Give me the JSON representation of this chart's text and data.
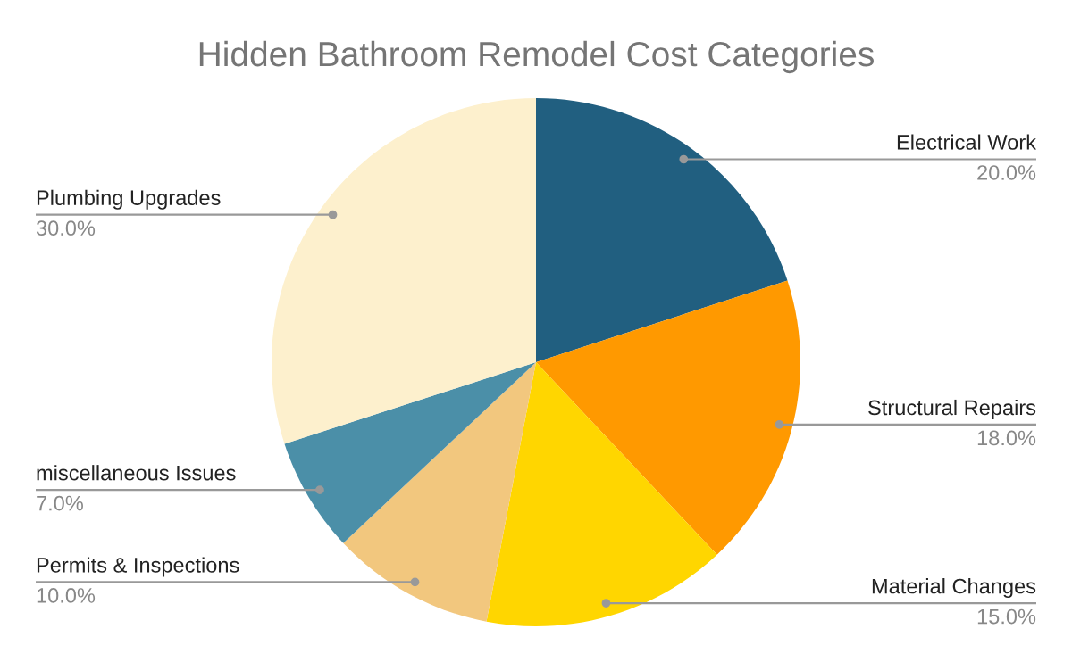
{
  "chart_data": {
    "type": "pie",
    "title": "Hidden Bathroom Remodel Cost Categories",
    "categories": [
      "Electrical Work",
      "Structural Repairs",
      "Material Changes",
      "Permits & Inspections",
      "miscellaneous Issues",
      "Plumbing Upgrades"
    ],
    "values": [
      20.0,
      18.0,
      15.0,
      10.0,
      7.0,
      30.0
    ],
    "colors": [
      "#215f80",
      "#ff9900",
      "#ffd600",
      "#f2c77e",
      "#4b8fa8",
      "#fdf0cd"
    ],
    "value_labels": [
      "20.0%",
      "18.0%",
      "15.0%",
      "10.0%",
      "7.0%",
      "30.0%"
    ]
  }
}
